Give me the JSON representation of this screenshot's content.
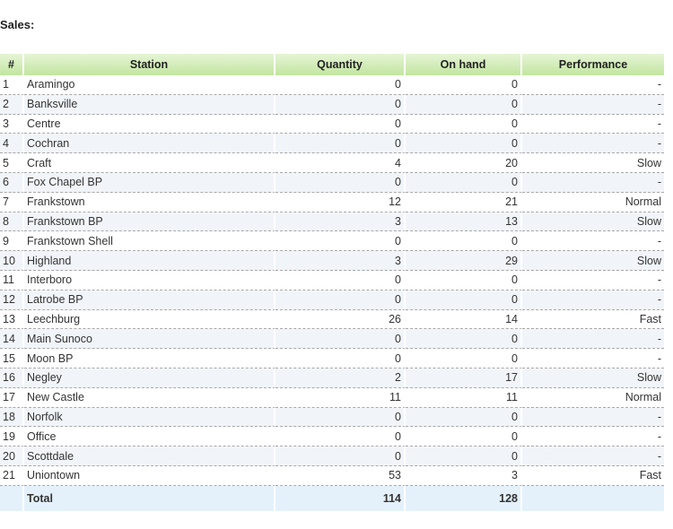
{
  "section_title": "Sales:",
  "table": {
    "headers": {
      "num": "#",
      "station": "Station",
      "quantity": "Quantity",
      "on_hand": "On hand",
      "performance": "Performance"
    },
    "rows": [
      {
        "num": "1",
        "station": "Aramingo",
        "quantity": "0",
        "on_hand": "0",
        "performance": "-"
      },
      {
        "num": "2",
        "station": "Banksville",
        "quantity": "0",
        "on_hand": "0",
        "performance": "-"
      },
      {
        "num": "3",
        "station": "Centre",
        "quantity": "0",
        "on_hand": "0",
        "performance": "-"
      },
      {
        "num": "4",
        "station": "Cochran",
        "quantity": "0",
        "on_hand": "0",
        "performance": "-"
      },
      {
        "num": "5",
        "station": "Craft",
        "quantity": "4",
        "on_hand": "20",
        "performance": "Slow"
      },
      {
        "num": "6",
        "station": "Fox Chapel BP",
        "quantity": "0",
        "on_hand": "0",
        "performance": "-"
      },
      {
        "num": "7",
        "station": "Frankstown",
        "quantity": "12",
        "on_hand": "21",
        "performance": "Normal"
      },
      {
        "num": "8",
        "station": "Frankstown BP",
        "quantity": "3",
        "on_hand": "13",
        "performance": "Slow"
      },
      {
        "num": "9",
        "station": "Frankstown Shell",
        "quantity": "0",
        "on_hand": "0",
        "performance": "-"
      },
      {
        "num": "10",
        "station": "Highland",
        "quantity": "3",
        "on_hand": "29",
        "performance": "Slow"
      },
      {
        "num": "11",
        "station": "Interboro",
        "quantity": "0",
        "on_hand": "0",
        "performance": "-"
      },
      {
        "num": "12",
        "station": "Latrobe BP",
        "quantity": "0",
        "on_hand": "0",
        "performance": "-"
      },
      {
        "num": "13",
        "station": "Leechburg",
        "quantity": "26",
        "on_hand": "14",
        "performance": "Fast"
      },
      {
        "num": "14",
        "station": "Main Sunoco",
        "quantity": "0",
        "on_hand": "0",
        "performance": "-"
      },
      {
        "num": "15",
        "station": "Moon BP",
        "quantity": "0",
        "on_hand": "0",
        "performance": "-"
      },
      {
        "num": "16",
        "station": "Negley",
        "quantity": "2",
        "on_hand": "17",
        "performance": "Slow"
      },
      {
        "num": "17",
        "station": "New Castle",
        "quantity": "11",
        "on_hand": "11",
        "performance": "Normal"
      },
      {
        "num": "18",
        "station": "Norfolk",
        "quantity": "0",
        "on_hand": "0",
        "performance": "-"
      },
      {
        "num": "19",
        "station": "Office",
        "quantity": "0",
        "on_hand": "0",
        "performance": "-"
      },
      {
        "num": "20",
        "station": "Scottdale",
        "quantity": "0",
        "on_hand": "0",
        "performance": "-"
      },
      {
        "num": "21",
        "station": "Uniontown",
        "quantity": "53",
        "on_hand": "3",
        "performance": "Fast"
      }
    ],
    "footer": {
      "num": "",
      "station": "Total",
      "quantity": "114",
      "on_hand": "128",
      "performance": ""
    }
  },
  "colors": {
    "header_gradient_top": "#e6f5d6",
    "header_gradient_bottom": "#c2e59f",
    "row_alt": "#f1f5fa",
    "footer_bg": "#e4f1fb"
  }
}
